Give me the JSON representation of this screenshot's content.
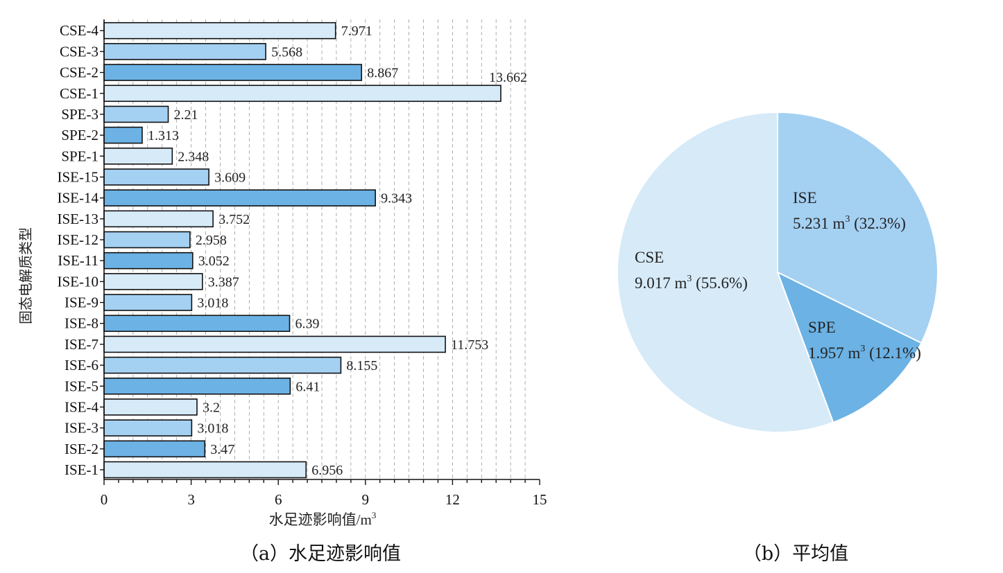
{
  "chart_data": [
    {
      "type": "bar",
      "orientation": "horizontal",
      "categories": [
        "ISE-1",
        "ISE-2",
        "ISE-3",
        "ISE-4",
        "ISE-5",
        "ISE-6",
        "ISE-7",
        "ISE-8",
        "ISE-9",
        "ISE-10",
        "ISE-11",
        "ISE-12",
        "ISE-13",
        "ISE-14",
        "ISE-15",
        "SPE-1",
        "SPE-2",
        "SPE-3",
        "CSE-1",
        "CSE-2",
        "CSE-3",
        "CSE-4"
      ],
      "values": [
        6.956,
        3.47,
        3.018,
        3.2,
        6.41,
        8.155,
        11.753,
        6.39,
        3.018,
        3.387,
        3.052,
        2.958,
        3.752,
        9.343,
        3.609,
        2.348,
        1.313,
        2.21,
        13.662,
        8.867,
        5.568,
        7.971
      ],
      "value_labels": [
        "6.956",
        "3.47",
        "3.018",
        "3.2",
        "6.41",
        "8.155",
        "11.753",
        "6.39",
        "3.018",
        "3.387",
        "3.052",
        "2.958",
        "3.752",
        "9.343",
        "3.609",
        "2.348",
        "1.313",
        "2.21",
        "13.662",
        "8.867",
        "5.568",
        "7.971"
      ],
      "bar_colors_cycle": [
        "#d6eaf8",
        "#6cb2e4",
        "#a4d0f2"
      ],
      "xlabel": "水足迹影响值/m",
      "xlabel_sup": "3",
      "ylabel": "固态电解质类型",
      "xlim": [
        0,
        15
      ],
      "xticks": [
        "0",
        "3",
        "6",
        "9",
        "12",
        "15"
      ],
      "grid": "vertical dashed",
      "caption": "（a）水足迹影响值"
    },
    {
      "type": "pie",
      "slices": [
        {
          "name": "ISE",
          "value": 5.231,
          "value_text": "5.231 m",
          "unit_sup": "3",
          "percent_text": "(32.3%)",
          "color": "#a4d0f2"
        },
        {
          "name": "SPE",
          "value": 1.957,
          "value_text": "1.957 m",
          "unit_sup": "3",
          "percent_text": "(12.1%)",
          "color": "#6cb2e4"
        },
        {
          "name": "CSE",
          "value": 9.017,
          "value_text": "9.017 m",
          "unit_sup": "3",
          "percent_text": "(55.6%)",
          "color": "#d6eaf8"
        }
      ],
      "caption": "（b）平均值"
    }
  ]
}
